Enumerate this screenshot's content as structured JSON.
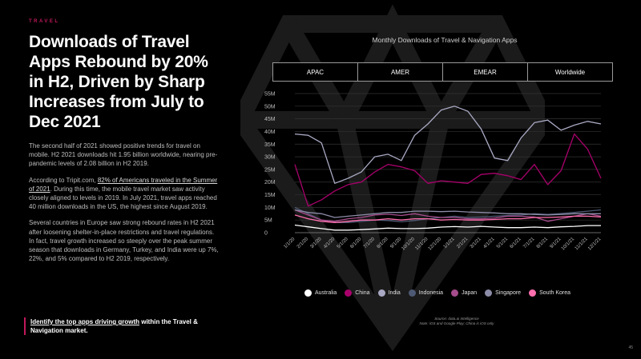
{
  "eyebrow": "TRAVEL",
  "title": "Downloads of Travel Apps Rebound by 20% in H2, Driven by Sharp Increases from July to Dec 2021",
  "paragraphs": {
    "p1": "The second half of 2021 showed positive trends for travel on mobile. H2 2021 downloads hit 1.95 billion worldwide, nearing pre-pandemic levels of 2.08 billion in H2 2019.",
    "p2_before": "According to Tripit.com, ",
    "p2_link": "82% of Americans traveled in the Summer of 2021",
    "p2_after": ". During this time, the mobile travel market saw activity closely aligned to levels in 2019. In July 2021, travel apps reached 40 million downloads in the US, the highest since August 2019.",
    "p3": "Several countries in Europe saw strong rebound rates in H2 2021 after loosening shelter-in-place restrictions and travel regulations. In fact, travel growth increased so steeply over the peak summer season that downloads in Germany, Turkey, and India were up 7%, 22%, and 5% compared to H2 2019, respectively."
  },
  "cta": {
    "link": "Identify the top apps driving growth",
    "rest": " within the Travel & Navigation market."
  },
  "tabs": [
    "APAC",
    "AMER",
    "EMEAR",
    "Worldwide"
  ],
  "source": {
    "line1": "Source: data.ai Intelligence",
    "line2": "Note: iOS and Google Play; China is iOS only"
  },
  "page_number": "45",
  "chart_data": {
    "type": "line",
    "title": "Monthly Downloads of Travel & Navigation Apps",
    "x": [
      "1/1/20",
      "2/1/20",
      "3/1/20",
      "4/1/20",
      "5/1/20",
      "6/1/20",
      "7/1/20",
      "8/1/20",
      "9/1/20",
      "10/1/20",
      "11/1/20",
      "12/1/20",
      "1/1/21",
      "2/1/21",
      "3/1/21",
      "4/1/21",
      "5/1/21",
      "6/1/21",
      "7/1/21",
      "8/1/21",
      "9/1/21",
      "10/1/21",
      "11/1/21",
      "12/1/21"
    ],
    "ylim": [
      0,
      55
    ],
    "yticks": [
      0,
      5,
      10,
      15,
      20,
      25,
      30,
      35,
      40,
      45,
      50,
      55
    ],
    "ytick_labels": [
      "0",
      "5M",
      "10M",
      "15M",
      "20M",
      "25M",
      "30M",
      "35M",
      "40M",
      "45M",
      "50M",
      "55M"
    ],
    "legend_position": "bottom",
    "grid": true,
    "series": [
      {
        "name": "Australia",
        "color": "#ffffff",
        "values": [
          3,
          2.3,
          1.6,
          1,
          1,
          1.2,
          1.5,
          1.8,
          1.6,
          1.6,
          1.8,
          2.2,
          2.4,
          2.2,
          2.5,
          2.2,
          2.0,
          2.0,
          2.2,
          2.0,
          2.3,
          2.5,
          2.8,
          2.8
        ]
      },
      {
        "name": "China",
        "color": "#a8006b",
        "values": [
          27,
          10.5,
          13,
          16.5,
          19,
          20,
          24,
          27,
          26,
          24.5,
          19.5,
          20.5,
          20,
          19.5,
          23,
          23.5,
          22.5,
          21,
          27,
          19,
          24.5,
          39,
          33,
          21.5
        ]
      },
      {
        "name": "India",
        "color": "#a9a9c4",
        "values": [
          39,
          38.5,
          35.5,
          19.5,
          21.5,
          24,
          30,
          31,
          28.5,
          38.5,
          43,
          48.5,
          50,
          48,
          41,
          29.5,
          28.5,
          37.5,
          43.5,
          44.5,
          40.5,
          42.5,
          44,
          43
        ]
      },
      {
        "name": "Indonesia",
        "color": "#4e5a74",
        "values": [
          10,
          7.5,
          5,
          4,
          4,
          4.5,
          5,
          4.8,
          4.3,
          4.8,
          5.5,
          6,
          6.5,
          6,
          6.2,
          6.5,
          6.8,
          7,
          7.5,
          7.2,
          7.6,
          8,
          8.5,
          9
        ]
      },
      {
        "name": "Japan",
        "color": "#a64c8c",
        "values": [
          9,
          7,
          5,
          4.5,
          5.5,
          6,
          7,
          7.3,
          6.8,
          7.5,
          6.5,
          6,
          6,
          5.5,
          5.5,
          5.8,
          6.5,
          6.5,
          6.2,
          4.5,
          5.5,
          6.5,
          7.5,
          6.5
        ]
      },
      {
        "name": "Singapore",
        "color": "#8c8ca8",
        "values": [
          9,
          8,
          7.5,
          6,
          6.5,
          7,
          7.5,
          8,
          8,
          8.5,
          8.5,
          8.3,
          8.5,
          8.2,
          8,
          7.8,
          7.5,
          7.5,
          7.2,
          7,
          7.2,
          7.5,
          7.5,
          7.5
        ]
      },
      {
        "name": "South Korea",
        "color": "#ff6fae",
        "values": [
          7,
          5.5,
          4.5,
          4,
          4.5,
          5,
          5,
          5.5,
          5,
          5.5,
          5.5,
          5,
          5.2,
          5,
          5,
          5.2,
          5.5,
          5.5,
          6,
          6,
          6.2,
          6.5,
          6.5,
          6.2
        ]
      }
    ]
  }
}
